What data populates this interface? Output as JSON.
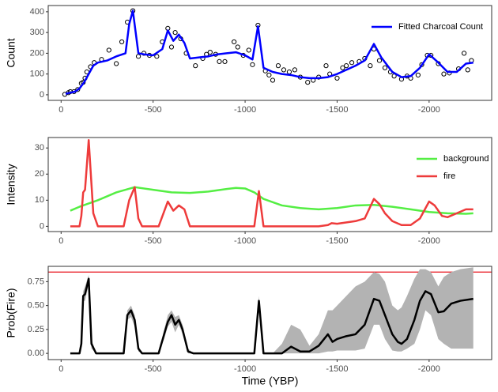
{
  "chart_data": [
    {
      "type": "line",
      "ylabel": "Count",
      "xlim": [
        70,
        -2340
      ],
      "ylim": [
        -27,
        430
      ],
      "xticks": [
        0,
        -500,
        -1000,
        -1500,
        -2000
      ],
      "yticks": [
        0,
        100,
        200,
        300,
        400
      ],
      "legend": "top-right",
      "series": [
        {
          "type": "scatter",
          "color": "#000000",
          "x": [
            -20,
            -40,
            -50,
            -70,
            -90,
            -110,
            -120,
            -130,
            -140,
            -160,
            -180,
            -220,
            -260,
            -300,
            -330,
            -360,
            -390,
            -420,
            -450,
            -480,
            -520,
            -550,
            -580,
            -600,
            -620,
            -650,
            -680,
            -730,
            -770,
            -790,
            -810,
            -840,
            -860,
            -890,
            -940,
            -960,
            -990,
            -1020,
            -1040,
            -1070,
            -1110,
            -1130,
            -1150,
            -1180,
            -1210,
            -1240,
            -1270,
            -1300,
            -1340,
            -1370,
            -1400,
            -1440,
            -1460,
            -1500,
            -1530,
            -1550,
            -1580,
            -1620,
            -1650,
            -1680,
            -1700,
            -1730,
            -1760,
            -1790,
            -1810,
            -1850,
            -1880,
            -1900,
            -1940,
            -1960,
            -1990,
            -2010,
            -2050,
            -2080,
            -2110,
            -2160,
            -2190,
            -2210,
            -2230
          ],
          "values": [
            2,
            10,
            15,
            15,
            25,
            55,
            60,
            80,
            110,
            135,
            155,
            170,
            215,
            150,
            255,
            350,
            405,
            185,
            200,
            190,
            185,
            255,
            320,
            230,
            300,
            270,
            200,
            140,
            175,
            195,
            205,
            195,
            160,
            160,
            255,
            230,
            190,
            215,
            145,
            335,
            115,
            95,
            70,
            140,
            120,
            110,
            120,
            85,
            60,
            70,
            85,
            140,
            100,
            80,
            130,
            140,
            155,
            160,
            175,
            140,
            220,
            165,
            130,
            110,
            90,
            75,
            90,
            80,
            95,
            145,
            190,
            190,
            150,
            100,
            105,
            125,
            200,
            120,
            165
          ]
        },
        {
          "type": "line",
          "name": "Fitted Charcoal Count",
          "color": "#0000ff",
          "x": [
            -25,
            -50,
            -75,
            -100,
            -125,
            -150,
            -175,
            -200,
            -250,
            -300,
            -350,
            -370,
            -390,
            -420,
            -450,
            -500,
            -550,
            -580,
            -610,
            -640,
            -670,
            -700,
            -750,
            -800,
            -850,
            -900,
            -950,
            -1000,
            -1040,
            -1070,
            -1100,
            -1150,
            -1200,
            -1250,
            -1300,
            -1350,
            -1400,
            -1450,
            -1500,
            -1550,
            -1600,
            -1650,
            -1700,
            -1740,
            -1800,
            -1850,
            -1900,
            -1950,
            -2000,
            -2050,
            -2100,
            -2150,
            -2200,
            -2240
          ],
          "values": [
            5,
            10,
            15,
            30,
            60,
            100,
            140,
            155,
            165,
            185,
            200,
            340,
            405,
            200,
            195,
            190,
            220,
            310,
            260,
            290,
            250,
            175,
            180,
            185,
            195,
            200,
            205,
            190,
            170,
            330,
            130,
            110,
            100,
            95,
            85,
            80,
            80,
            85,
            100,
            120,
            140,
            165,
            245,
            180,
            110,
            85,
            90,
            130,
            195,
            155,
            110,
            110,
            150,
            155
          ]
        }
      ]
    },
    {
      "type": "line",
      "ylabel": "Intensity",
      "xlim": [
        70,
        -2340
      ],
      "ylim": [
        -2,
        34
      ],
      "xticks": [
        0,
        -500,
        -1000,
        -1500,
        -2000
      ],
      "yticks": [
        0,
        10,
        20,
        30
      ],
      "legend": "top-right",
      "series": [
        {
          "type": "line",
          "name": "background",
          "color": "#55ee44",
          "x": [
            -50,
            -100,
            -200,
            -300,
            -400,
            -500,
            -600,
            -700,
            -800,
            -900,
            -950,
            -1000,
            -1050,
            -1100,
            -1200,
            -1300,
            -1400,
            -1500,
            -1600,
            -1700,
            -1800,
            -1900,
            -2000,
            -2100,
            -2200,
            -2240
          ],
          "values": [
            6,
            7.5,
            10,
            13,
            15,
            14,
            13,
            12.8,
            13.3,
            14.3,
            14.7,
            14.5,
            13,
            10.5,
            8,
            7,
            6.5,
            7,
            8,
            8.2,
            7.5,
            6.5,
            5.5,
            5,
            4.8,
            5
          ]
        },
        {
          "type": "line",
          "name": "fire",
          "color": "#ee3b3b",
          "x": [
            -50,
            -100,
            -110,
            -120,
            -130,
            -150,
            -175,
            -200,
            -340,
            -370,
            -400,
            -420,
            -440,
            -530,
            -580,
            -610,
            -640,
            -670,
            -700,
            -1050,
            -1075,
            -1100,
            -1150,
            -1400,
            -1450,
            -1470,
            -1500,
            -1600,
            -1650,
            -1700,
            -1730,
            -1760,
            -1800,
            -1850,
            -1900,
            -1950,
            -2000,
            -2030,
            -2070,
            -2100,
            -2150,
            -2200,
            -2240
          ],
          "values": [
            0,
            0,
            4,
            13,
            14,
            33,
            5,
            0,
            0,
            10,
            15,
            3,
            0,
            0,
            9.5,
            6,
            8,
            6.5,
            0,
            0,
            13.5,
            0,
            0,
            0,
            0.5,
            1.2,
            1,
            2,
            3,
            10.5,
            8.5,
            5,
            2,
            0.5,
            0.5,
            3,
            9.5,
            8,
            4,
            3.5,
            5,
            6.5,
            6.5
          ]
        }
      ]
    },
    {
      "type": "line",
      "ylabel": "Prob(Fire)",
      "xlabel": "Time (YBP)",
      "xlim": [
        70,
        -2340
      ],
      "ylim": [
        -0.065,
        0.91
      ],
      "xticks": [
        0,
        -500,
        -1000,
        -1500,
        -2000
      ],
      "yticks": [
        {
          "value": 0,
          "label": "0.00"
        },
        {
          "value": 0.25,
          "label": "0.25"
        },
        {
          "value": 0.5,
          "label": "0.50"
        },
        {
          "value": 0.75,
          "label": "0.75"
        }
      ],
      "hlines": [
        {
          "value": 0.85,
          "color": "#e8141e"
        }
      ],
      "series": [
        {
          "type": "band",
          "color": "#b3b3b3",
          "x": [
            -50,
            -100,
            -110,
            -120,
            -130,
            -150,
            -165,
            -190,
            -340,
            -360,
            -380,
            -400,
            -420,
            -440,
            -530,
            -560,
            -580,
            -600,
            -620,
            -640,
            -660,
            -690,
            -720,
            -1050,
            -1075,
            -1100,
            -1150,
            -1200,
            -1250,
            -1300,
            -1350,
            -1400,
            -1450,
            -1475,
            -1500,
            -1550,
            -1600,
            -1650,
            -1700,
            -1730,
            -1760,
            -1800,
            -1830,
            -1850,
            -1880,
            -1920,
            -1950,
            -1980,
            -2010,
            -2050,
            -2080,
            -2120,
            -2170,
            -2240
          ],
          "lower": [
            0,
            0,
            0.05,
            0.55,
            0.55,
            0.72,
            0.05,
            0,
            0,
            0.35,
            0.38,
            0.28,
            0.02,
            0,
            0,
            0.15,
            0.28,
            0.33,
            0.22,
            0.3,
            0.2,
            0,
            0,
            0,
            0.5,
            0,
            0,
            0,
            0,
            0,
            0,
            0,
            0.02,
            0.02,
            0.03,
            0.03,
            0.03,
            0.05,
            0.3,
            0.3,
            0.15,
            0.03,
            0.02,
            0.02,
            0.05,
            0.1,
            0.25,
            0.45,
            0.4,
            0.15,
            0.1,
            0.05,
            0.05,
            0.05
          ],
          "upper": [
            0,
            0,
            0.15,
            0.65,
            0.7,
            0.82,
            0.15,
            0,
            0,
            0.45,
            0.5,
            0.4,
            0.08,
            0,
            0,
            0.25,
            0.4,
            0.45,
            0.38,
            0.4,
            0.3,
            0.05,
            0,
            0,
            0.6,
            0,
            0,
            0.1,
            0.3,
            0.25,
            0.08,
            0.2,
            0.45,
            0.45,
            0.5,
            0.6,
            0.7,
            0.75,
            0.85,
            0.83,
            0.75,
            0.5,
            0.45,
            0.48,
            0.6,
            0.78,
            0.88,
            0.88,
            0.85,
            0.7,
            0.8,
            0.85,
            0.88,
            0.9
          ]
        },
        {
          "type": "line",
          "color": "#000000",
          "x": [
            -50,
            -100,
            -110,
            -120,
            -130,
            -150,
            -165,
            -190,
            -340,
            -360,
            -380,
            -400,
            -420,
            -440,
            -530,
            -560,
            -580,
            -600,
            -620,
            -640,
            -660,
            -690,
            -720,
            -1050,
            -1075,
            -1100,
            -1150,
            -1200,
            -1250,
            -1300,
            -1350,
            -1400,
            -1450,
            -1475,
            -1500,
            -1550,
            -1600,
            -1650,
            -1700,
            -1730,
            -1760,
            -1800,
            -1830,
            -1850,
            -1880,
            -1920,
            -1950,
            -1980,
            -2010,
            -2050,
            -2080,
            -2120,
            -2170,
            -2240
          ],
          "values": [
            0,
            0,
            0.1,
            0.6,
            0.62,
            0.78,
            0.1,
            0,
            0,
            0.4,
            0.45,
            0.35,
            0.05,
            0,
            0,
            0.2,
            0.33,
            0.4,
            0.3,
            0.35,
            0.25,
            0.02,
            0,
            0,
            0.55,
            0,
            0,
            0,
            0.07,
            0.02,
            0.02,
            0.08,
            0.2,
            0.12,
            0.15,
            0.18,
            0.2,
            0.3,
            0.57,
            0.55,
            0.4,
            0.2,
            0.12,
            0.1,
            0.15,
            0.35,
            0.55,
            0.65,
            0.62,
            0.43,
            0.44,
            0.52,
            0.55,
            0.57
          ]
        }
      ]
    }
  ]
}
